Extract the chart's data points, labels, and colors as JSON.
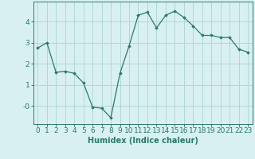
{
  "x": [
    0,
    1,
    2,
    3,
    4,
    5,
    6,
    7,
    8,
    9,
    10,
    11,
    12,
    13,
    14,
    15,
    16,
    17,
    18,
    19,
    20,
    21,
    22,
    23
  ],
  "y": [
    2.75,
    3.0,
    1.6,
    1.65,
    1.55,
    1.1,
    -0.05,
    -0.1,
    -0.55,
    1.55,
    2.85,
    4.3,
    4.45,
    3.7,
    4.3,
    4.5,
    4.2,
    3.8,
    3.35,
    3.35,
    3.25,
    3.25,
    2.7,
    2.55
  ],
  "line_color": "#2a7a6a",
  "marker": "D",
  "marker_size": 1.8,
  "bg_color": "#d9f0f0",
  "grid_color": "#b0d8d8",
  "xlabel": "Humidex (Indice chaleur)",
  "ylim": [
    -0.85,
    4.95
  ],
  "xlim": [
    -0.5,
    23.5
  ],
  "xlabel_fontsize": 7,
  "tick_fontsize": 6.5
}
